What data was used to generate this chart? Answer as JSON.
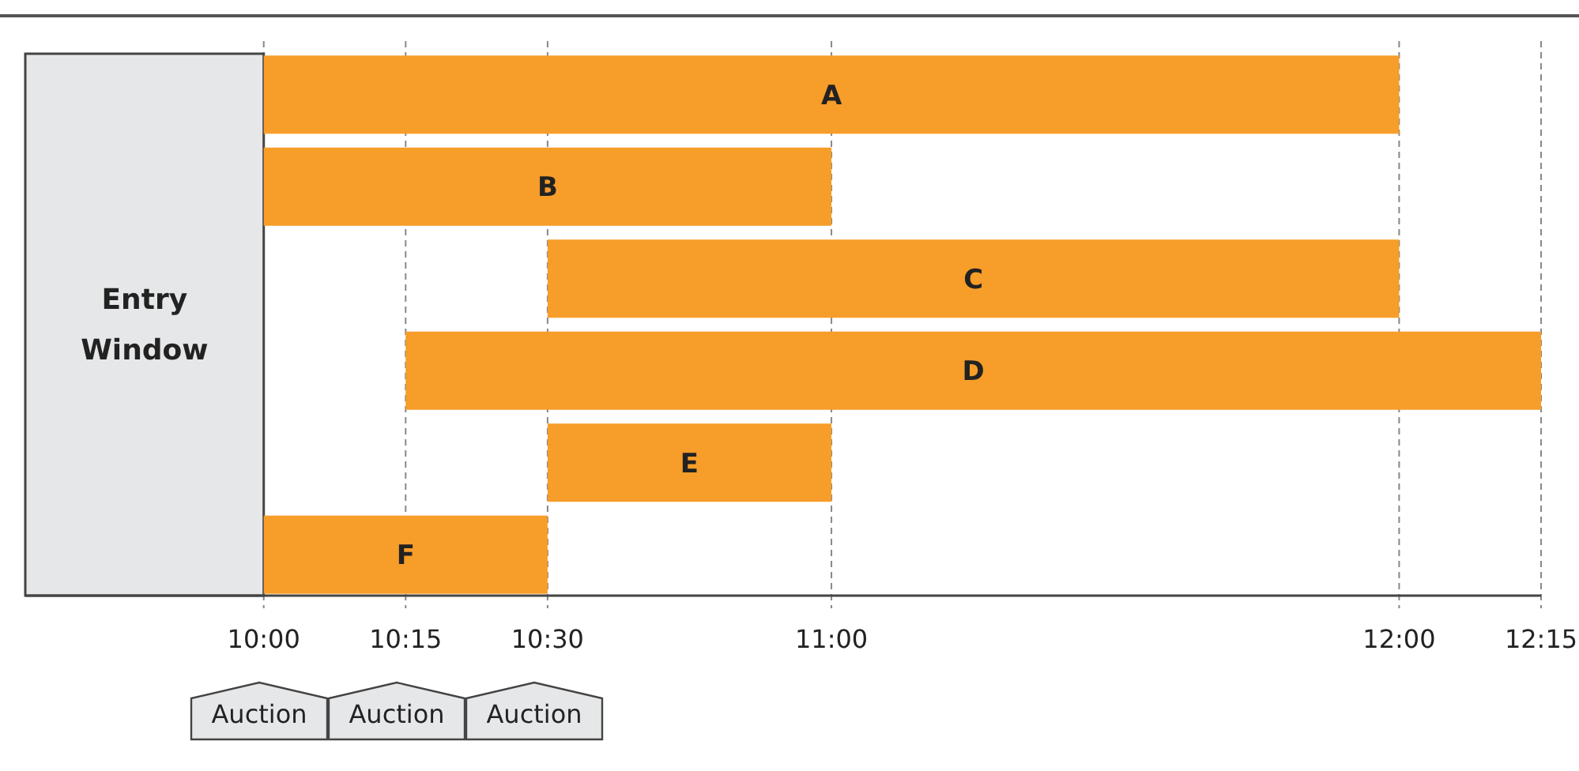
{
  "chart_data": {
    "type": "bar",
    "orientation": "horizontal",
    "categories": [
      "A",
      "B",
      "C",
      "D",
      "E",
      "F"
    ],
    "base": [
      10,
      10,
      10.5,
      10.25,
      10.5,
      10
    ],
    "values": [
      2,
      1,
      1.5,
      2,
      0.5,
      0.5
    ],
    "color": "#f79d2a",
    "xlim": [
      9.58,
      12.25
    ],
    "xticks": [
      {
        "value": 10,
        "label": "10:00"
      },
      {
        "value": 10.25,
        "label": "10:15"
      },
      {
        "value": 10.5,
        "label": "10:30"
      },
      {
        "value": 11,
        "label": "11:00"
      },
      {
        "value": 12,
        "label": "12:00"
      },
      {
        "value": 12.25,
        "label": "12:15"
      }
    ],
    "grid": "x",
    "bands": [
      {
        "axis": "x",
        "from": 9.58,
        "to": 10,
        "label": "Entry Window",
        "color": "#e6e7e9"
      }
    ],
    "annotations": [
      "Auction",
      "Auction",
      "Auction"
    ]
  }
}
